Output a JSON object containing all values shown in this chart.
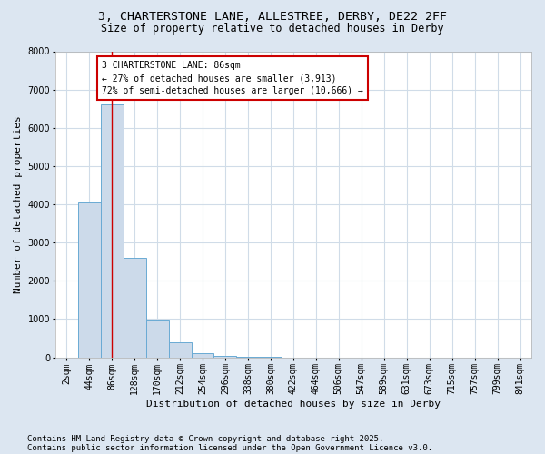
{
  "title_line1": "3, CHARTERSTONE LANE, ALLESTREE, DERBY, DE22 2FF",
  "title_line2": "Size of property relative to detached houses in Derby",
  "xlabel": "Distribution of detached houses by size in Derby",
  "ylabel": "Number of detached properties",
  "footnote1": "Contains HM Land Registry data © Crown copyright and database right 2025.",
  "footnote2": "Contains public sector information licensed under the Open Government Licence v3.0.",
  "annotation_line1": "3 CHARTERSTONE LANE: 86sqm",
  "annotation_line2": "← 27% of detached houses are smaller (3,913)",
  "annotation_line3": "72% of semi-detached houses are larger (10,666) →",
  "bar_labels": [
    "2sqm",
    "44sqm",
    "86sqm",
    "128sqm",
    "170sqm",
    "212sqm",
    "254sqm",
    "296sqm",
    "338sqm",
    "380sqm",
    "422sqm",
    "464sqm",
    "506sqm",
    "547sqm",
    "589sqm",
    "631sqm",
    "673sqm",
    "715sqm",
    "757sqm",
    "799sqm",
    "841sqm"
  ],
  "bar_values": [
    0,
    4050,
    6620,
    2600,
    980,
    390,
    100,
    35,
    10,
    5,
    2,
    1,
    1,
    0,
    0,
    0,
    0,
    0,
    0,
    0,
    0
  ],
  "bar_color": "#ccdaea",
  "bar_edge_color": "#6aaad4",
  "red_line_index": 2,
  "ylim": [
    0,
    8000
  ],
  "yticks": [
    0,
    1000,
    2000,
    3000,
    4000,
    5000,
    6000,
    7000,
    8000
  ],
  "fig_bg_color": "#dce6f1",
  "plot_bg_color": "#ffffff",
  "grid_color": "#d0dce8",
  "annotation_box_facecolor": "#ffffff",
  "annotation_box_edge": "#cc0000",
  "red_line_color": "#cc0000",
  "title_fontsize": 9.5,
  "subtitle_fontsize": 8.5,
  "axis_label_fontsize": 8,
  "tick_fontsize": 7,
  "annotation_fontsize": 7,
  "footnote_fontsize": 6.5
}
